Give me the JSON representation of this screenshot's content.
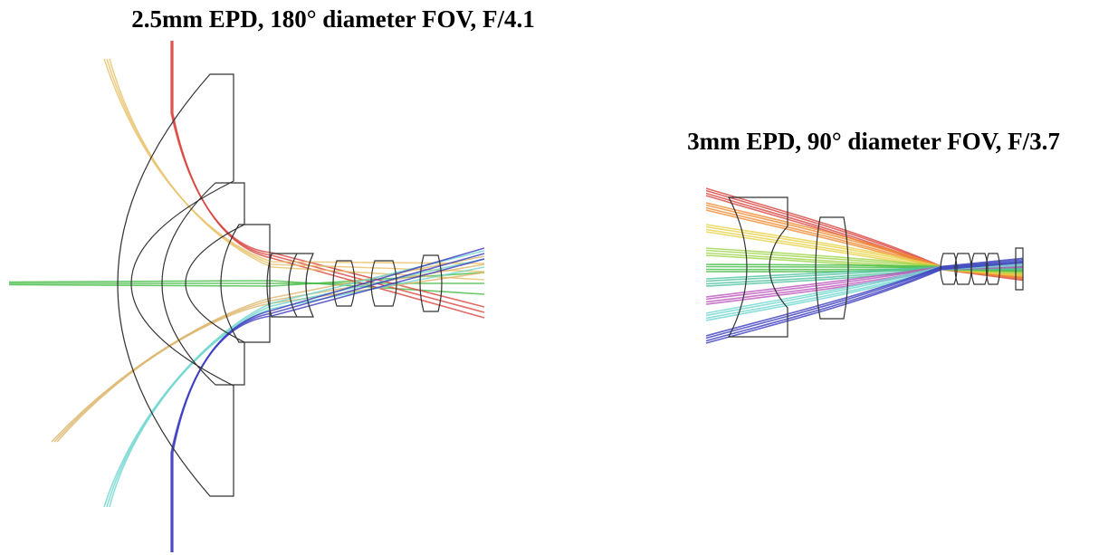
{
  "diagrams": [
    {
      "title": "2.5mm EPD, 180° diameter FOV, F/4.1"
    },
    {
      "title": "3mm EPD, 90° diameter FOV, F/3.7"
    }
  ]
}
